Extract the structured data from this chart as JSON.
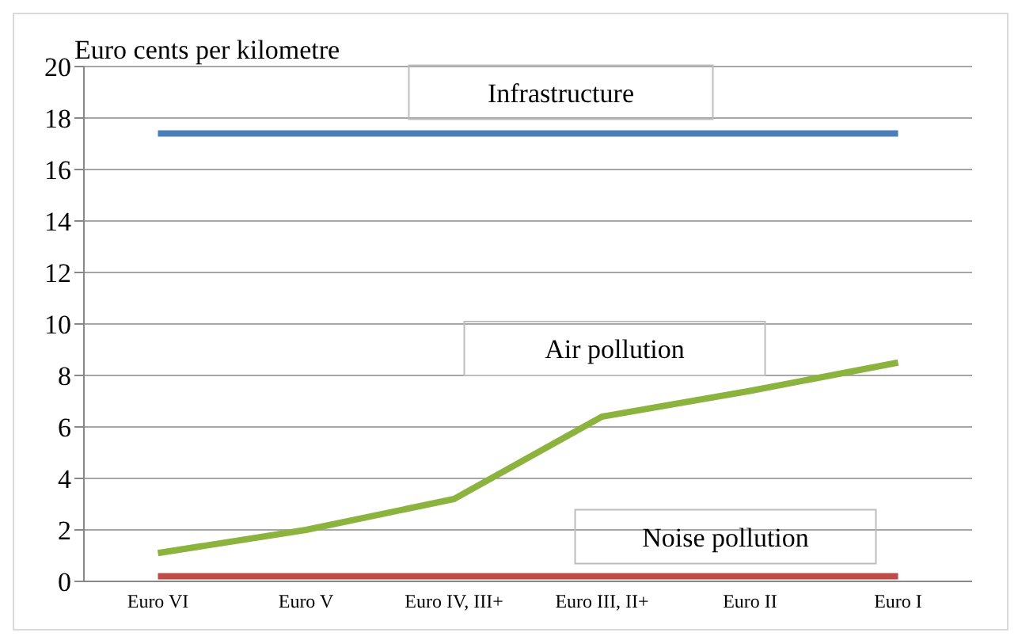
{
  "chart_data": {
    "type": "line",
    "ylabel": "Euro cents per kilometre",
    "categories": [
      "Euro VI",
      "Euro V",
      "Euro IV, III+",
      "Euro III, II+",
      "Euro II",
      "Euro I"
    ],
    "series": [
      {
        "name": "Infrastructure",
        "color": "#4a7ebb",
        "values": [
          17.4,
          17.4,
          17.4,
          17.4,
          17.4,
          17.4
        ]
      },
      {
        "name": "Air pollution",
        "color": "#8cb33e",
        "values": [
          1.1,
          2.0,
          3.2,
          6.4,
          7.4,
          8.5
        ]
      },
      {
        "name": "Noise pollution",
        "color": "#be4b48",
        "values": [
          0.2,
          0.2,
          0.2,
          0.2,
          0.2,
          0.2
        ]
      }
    ],
    "ylim": [
      0,
      20
    ],
    "yticks": [
      0,
      2,
      4,
      6,
      8,
      10,
      12,
      14,
      16,
      18,
      20
    ],
    "grid": "y",
    "legend": false,
    "marker": "none",
    "line_style": "solid"
  }
}
